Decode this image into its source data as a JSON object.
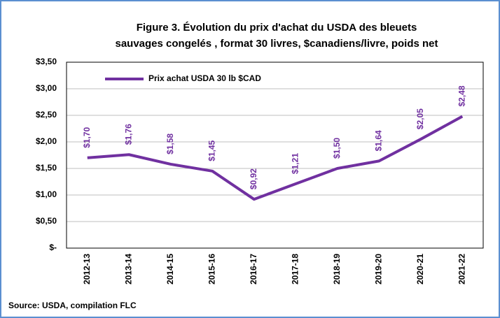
{
  "chart_data": {
    "type": "line",
    "title": [
      "Figure 3.  Évolution du prix d'achat du USDA des bleuets",
      "sauvages congelés , format 30 livres, $canadiens/livre, poids net"
    ],
    "categories": [
      "2012-13",
      "2013-14",
      "2014-15",
      "2015-16",
      "2016-17",
      "2017-18",
      "2018-19",
      "2019-20",
      "2020-21",
      "2021-22"
    ],
    "series": [
      {
        "name": "Prix achat USDA 30 lb $CAD",
        "color": "#7030a0",
        "values": [
          1.7,
          1.76,
          1.58,
          1.45,
          0.92,
          1.21,
          1.5,
          1.64,
          2.05,
          2.48
        ],
        "value_labels": [
          "$1,70",
          "$1,76",
          "$1,58",
          "$1,45",
          "$0,92",
          "$1,21",
          "$1,50",
          "$1,64",
          "$2,05",
          "$2,48"
        ]
      }
    ],
    "ylim": [
      0,
      3.5
    ],
    "yticks": [
      {
        "value": 0,
        "label": "$-"
      },
      {
        "value": 0.5,
        "label": "$0,50"
      },
      {
        "value": 1,
        "label": "$1,00"
      },
      {
        "value": 1.5,
        "label": "$1,50"
      },
      {
        "value": 2,
        "label": "$2,00"
      },
      {
        "value": 2.5,
        "label": "$2,50"
      },
      {
        "value": 3,
        "label": "$3,00"
      },
      {
        "value": 3.5,
        "label": "$3,50"
      }
    ],
    "grid": true,
    "legend": "top-left",
    "source": "Source: USDA, compilation FLC"
  }
}
